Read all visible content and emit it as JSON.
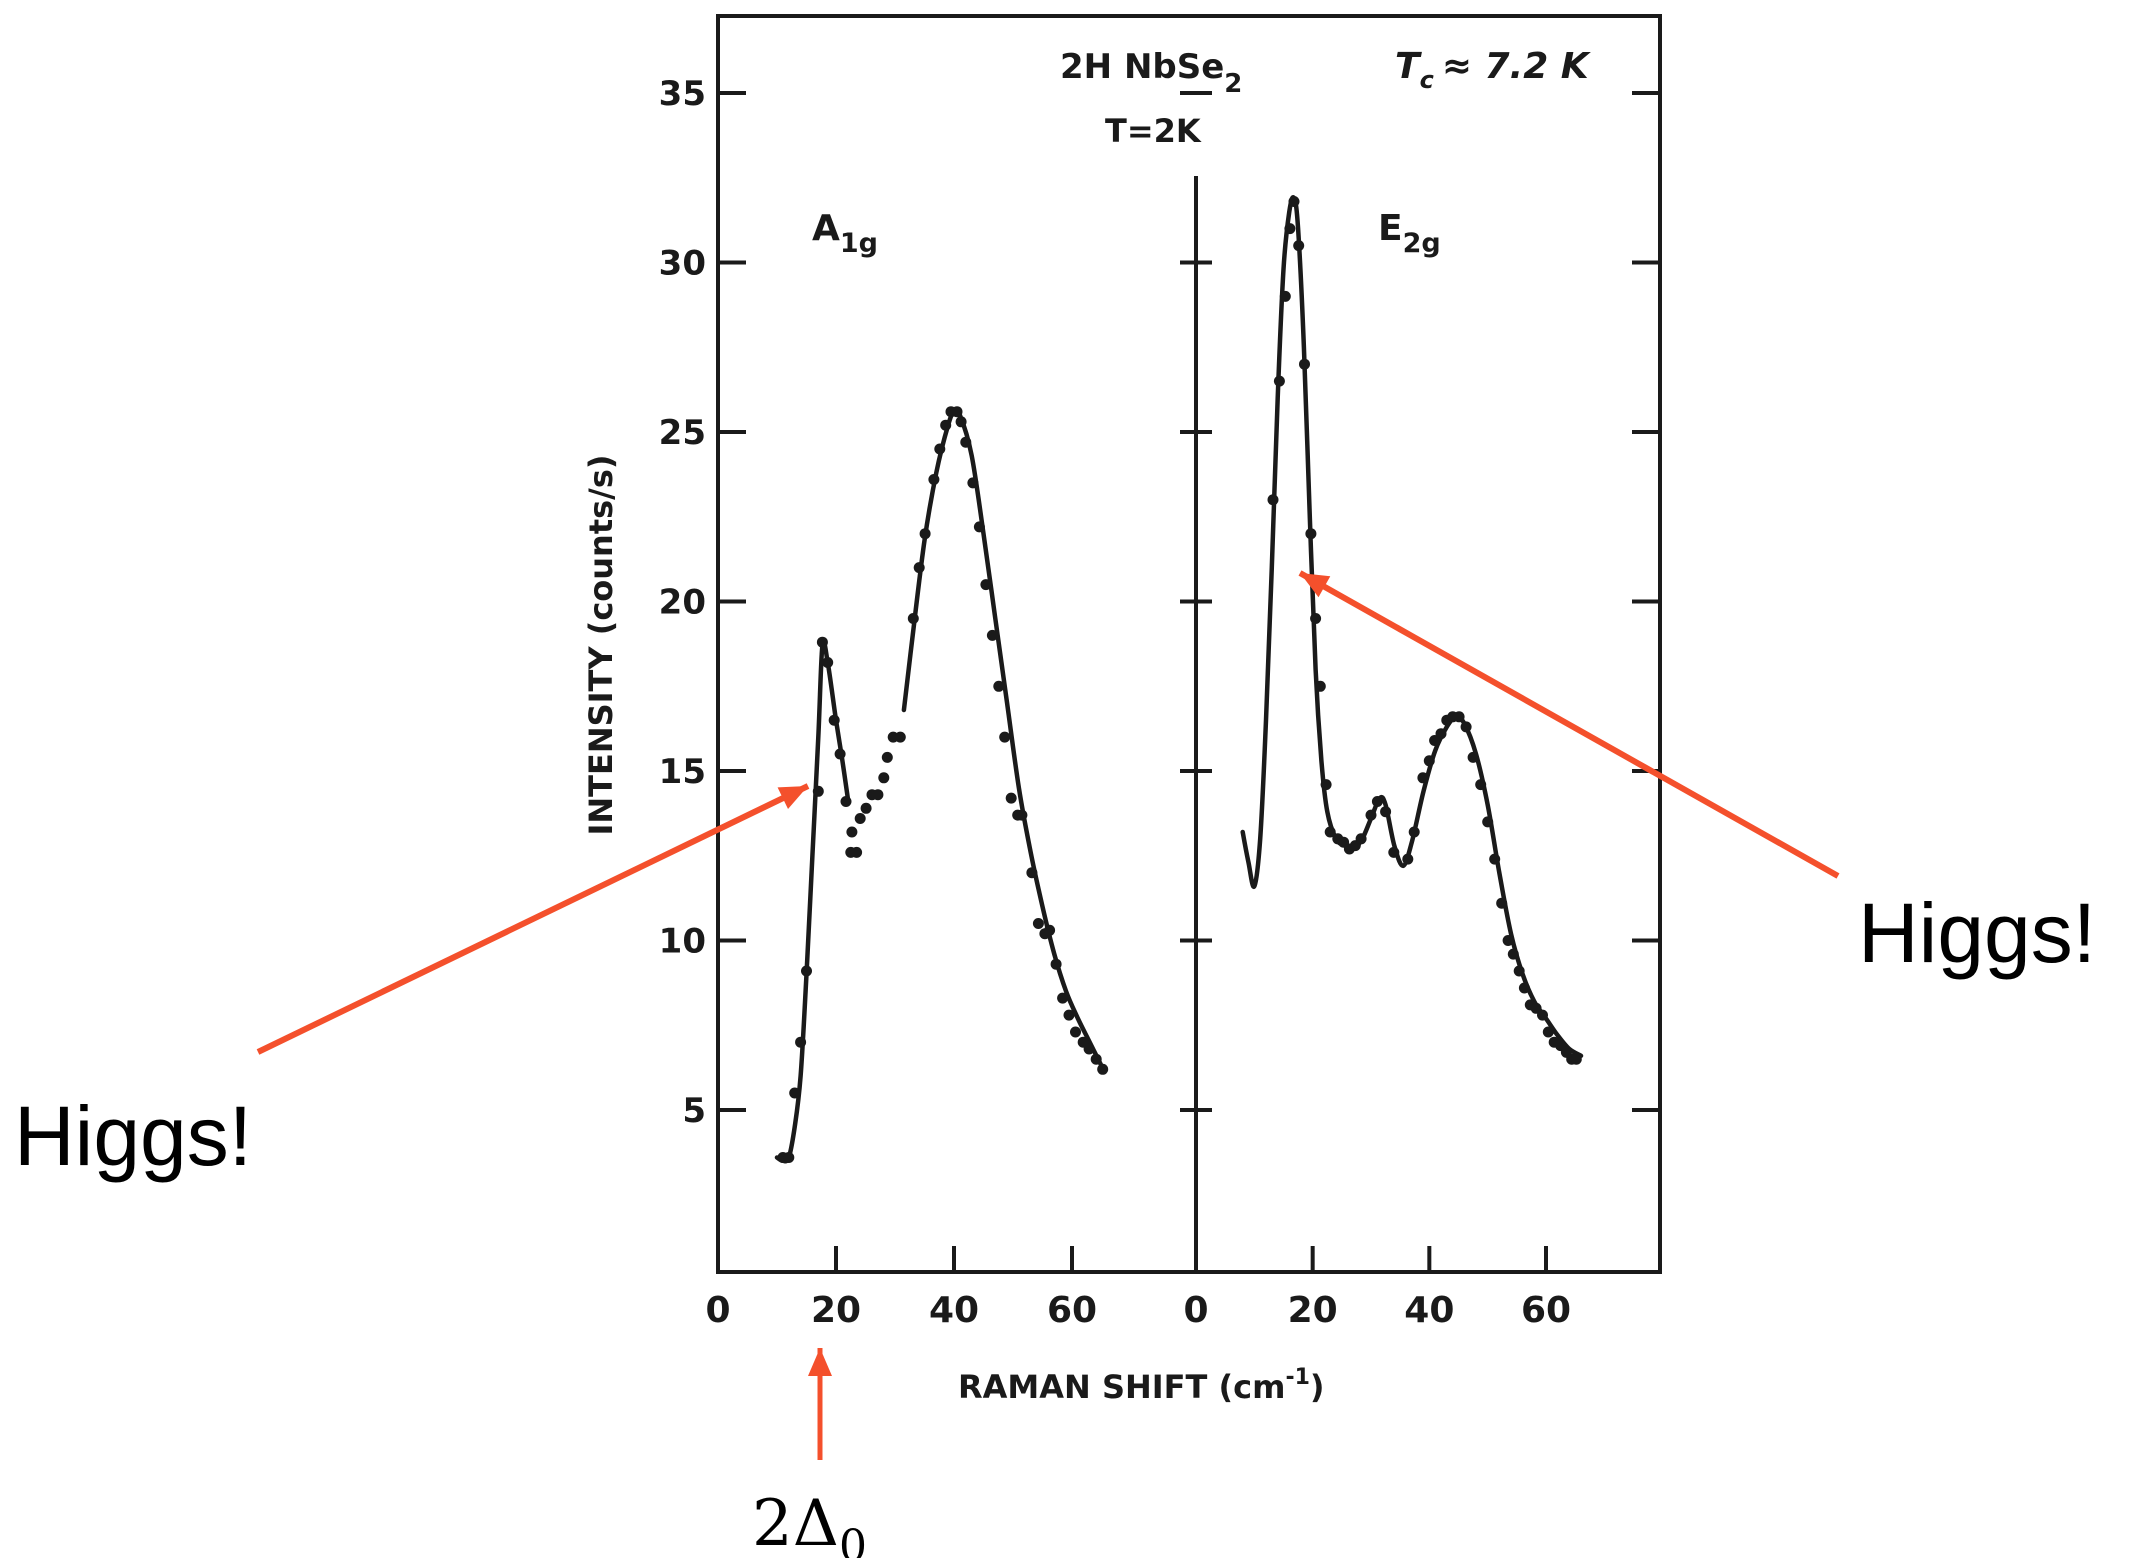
{
  "chart_data": {
    "type": "line",
    "title_line1": "2H NbSe",
    "title_line1_sub": "2",
    "title_line2": "T=2K",
    "tc_T": "T",
    "tc_sub": "c",
    "tc_rest": "≈ 7.2 K",
    "ylabel": "INTENSITY (counts/s)",
    "xlabel": "RAMAN SHIFT (cm",
    "xlabel_sup": "-1",
    "xlabel_close": ")",
    "ylim": [
      0,
      37
    ],
    "grid": false,
    "yticks": [
      {
        "value": 5,
        "label": "5"
      },
      {
        "value": 10,
        "label": "10"
      },
      {
        "value": 15,
        "label": "15"
      },
      {
        "value": 20,
        "label": "20"
      },
      {
        "value": 25,
        "label": "25"
      },
      {
        "value": 30,
        "label": "30"
      },
      {
        "value": 35,
        "label": "35"
      }
    ],
    "panels": [
      {
        "name": "A",
        "name_sub": "1g",
        "xticks": [
          {
            "value": 0,
            "label": "0"
          },
          {
            "value": 20,
            "label": "20"
          },
          {
            "value": 40,
            "label": "40"
          },
          {
            "value": 60,
            "label": "60"
          }
        ],
        "curve_segments": [
          [
            [
              10,
              3.6
            ],
            [
              11,
              3.5
            ],
            [
              12,
              3.6
            ],
            [
              13,
              4.5
            ],
            [
              14,
              6
            ],
            [
              15,
              9
            ],
            [
              16,
              12.5
            ],
            [
              17,
              16
            ],
            [
              17.7,
              18.7
            ],
            [
              18.6,
              18.2
            ],
            [
              20,
              16.5
            ],
            [
              21,
              15.4
            ],
            [
              22,
              14.2
            ]
          ],
          [
            [
              31.5,
              16.8
            ],
            [
              33,
              19
            ],
            [
              35,
              21.8
            ],
            [
              37,
              23.8
            ],
            [
              39,
              25.2
            ],
            [
              40,
              25.6
            ],
            [
              41,
              25.5
            ],
            [
              43,
              24.3
            ],
            [
              45,
              22
            ],
            [
              47,
              19.5
            ],
            [
              49,
              17
            ],
            [
              51,
              14.5
            ],
            [
              53,
              12.6
            ],
            [
              55,
              11
            ],
            [
              57,
              9.6
            ],
            [
              59,
              8.5
            ],
            [
              61,
              7.7
            ],
            [
              63,
              7
            ],
            [
              65,
              6.3
            ]
          ]
        ],
        "points": [
          [
            11,
            3.6
          ],
          [
            12,
            3.6
          ],
          [
            13,
            5.5
          ],
          [
            14,
            7
          ],
          [
            15,
            9.1
          ],
          [
            17,
            14.4
          ],
          [
            17.7,
            18.8
          ],
          [
            18.6,
            18.2
          ],
          [
            19.7,
            16.5
          ],
          [
            20.7,
            15.5
          ],
          [
            21.7,
            14.1
          ],
          [
            22.5,
            12.6
          ],
          [
            23.5,
            12.6
          ],
          [
            22.7,
            13.2
          ],
          [
            24.1,
            13.6
          ],
          [
            25.1,
            13.9
          ],
          [
            26.1,
            14.3
          ],
          [
            27.1,
            14.3
          ],
          [
            28.1,
            14.8
          ],
          [
            28.7,
            15.4
          ],
          [
            29.7,
            16
          ],
          [
            30.9,
            16
          ],
          [
            33.1,
            19.5
          ],
          [
            34.1,
            21
          ],
          [
            35.1,
            22
          ],
          [
            36.6,
            23.6
          ],
          [
            37.6,
            24.5
          ],
          [
            38.6,
            25.2
          ],
          [
            39.5,
            25.6
          ],
          [
            40.5,
            25.6
          ],
          [
            41.2,
            25.3
          ],
          [
            42,
            24.7
          ],
          [
            43.2,
            23.5
          ],
          [
            44.3,
            22.2
          ],
          [
            45.4,
            20.5
          ],
          [
            46.5,
            19
          ],
          [
            47.6,
            17.5
          ],
          [
            48.6,
            16
          ],
          [
            49.7,
            14.2
          ],
          [
            50.8,
            13.7
          ],
          [
            51.5,
            13.7
          ],
          [
            53.2,
            12
          ],
          [
            54.3,
            10.5
          ],
          [
            55.4,
            10.2
          ],
          [
            56.2,
            10.3
          ],
          [
            57.3,
            9.3
          ],
          [
            58.4,
            8.3
          ],
          [
            59.5,
            7.8
          ],
          [
            60.6,
            7.3
          ],
          [
            61.9,
            7
          ],
          [
            62.9,
            6.8
          ],
          [
            64.1,
            6.5
          ],
          [
            65.2,
            6.2
          ]
        ]
      },
      {
        "name": "E",
        "name_sub": "2g",
        "xticks": [
          {
            "value": 0,
            "label": "0"
          },
          {
            "value": 20,
            "label": "20"
          },
          {
            "value": 40,
            "label": "40"
          },
          {
            "value": 60,
            "label": "60"
          }
        ],
        "curve_segments": [
          [
            [
              8,
              13.2
            ],
            [
              9,
              12.3
            ],
            [
              10,
              11.6
            ],
            [
              11,
              13
            ],
            [
              12,
              16.5
            ],
            [
              13,
              21
            ],
            [
              14,
              26
            ],
            [
              15,
              29.8
            ],
            [
              16,
              31.5
            ],
            [
              16.8,
              31.9
            ],
            [
              17.5,
              31
            ],
            [
              18.5,
              27.5
            ],
            [
              19.5,
              22.5
            ],
            [
              20.5,
              18
            ],
            [
              21.5,
              15.3
            ],
            [
              22.5,
              13.8
            ],
            [
              24,
              13
            ],
            [
              25.5,
              12.8
            ],
            [
              27,
              12.7
            ],
            [
              28.5,
              13
            ],
            [
              30,
              13.6
            ],
            [
              31.5,
              14.2
            ],
            [
              32.5,
              14
            ],
            [
              34,
              12.8
            ],
            [
              35.5,
              12.2
            ],
            [
              37,
              12.9
            ],
            [
              39,
              14.4
            ],
            [
              41,
              15.6
            ],
            [
              43,
              16.3
            ],
            [
              44.5,
              16.6
            ],
            [
              46,
              16.4
            ],
            [
              48,
              15.5
            ],
            [
              50,
              14
            ],
            [
              52,
              12
            ],
            [
              54,
              10.2
            ],
            [
              56,
              9
            ],
            [
              58,
              8.2
            ],
            [
              60,
              7.7
            ],
            [
              62,
              7.2
            ],
            [
              64,
              6.8
            ],
            [
              66,
              6.6
            ]
          ]
        ],
        "points": [
          [
            13.2,
            23
          ],
          [
            14.3,
            26.5
          ],
          [
            15.3,
            29
          ],
          [
            16.1,
            31
          ],
          [
            16.8,
            31.8
          ],
          [
            17.6,
            30.5
          ],
          [
            18.6,
            27
          ],
          [
            19.7,
            22
          ],
          [
            20.5,
            19.5
          ],
          [
            21.3,
            17.5
          ],
          [
            22.3,
            14.6
          ],
          [
            23,
            13.2
          ],
          [
            24.3,
            13
          ],
          [
            25.3,
            12.9
          ],
          [
            26.3,
            12.7
          ],
          [
            27.3,
            12.8
          ],
          [
            28.3,
            13
          ],
          [
            30,
            13.7
          ],
          [
            31.1,
            14.1
          ],
          [
            32.5,
            13.8
          ],
          [
            33.9,
            12.6
          ],
          [
            36.3,
            12.4
          ],
          [
            37.4,
            13.2
          ],
          [
            38.9,
            14.8
          ],
          [
            40,
            15.3
          ],
          [
            40.9,
            15.9
          ],
          [
            42,
            16.1
          ],
          [
            43,
            16.5
          ],
          [
            44,
            16.6
          ],
          [
            45.1,
            16.6
          ],
          [
            46.3,
            16.3
          ],
          [
            47.5,
            15.4
          ],
          [
            48.8,
            14.6
          ],
          [
            50,
            13.5
          ],
          [
            51.2,
            12.4
          ],
          [
            52.4,
            11.1
          ],
          [
            53.5,
            10
          ],
          [
            54.4,
            9.6
          ],
          [
            55.4,
            9.1
          ],
          [
            56.3,
            8.6
          ],
          [
            57.3,
            8.1
          ],
          [
            58.3,
            8
          ],
          [
            59.4,
            7.8
          ],
          [
            60.4,
            7.3
          ],
          [
            61.4,
            7
          ],
          [
            62.5,
            6.9
          ],
          [
            63.5,
            6.7
          ],
          [
            64.4,
            6.5
          ],
          [
            65.2,
            6.5
          ]
        ]
      }
    ]
  },
  "annotations": {
    "left_higgs": "Higgs!",
    "right_higgs": "Higgs!",
    "gap_symbol": "2Δ",
    "gap_sub": "0",
    "arrow_color": "#f4502c",
    "text_color": "#e8462a"
  }
}
